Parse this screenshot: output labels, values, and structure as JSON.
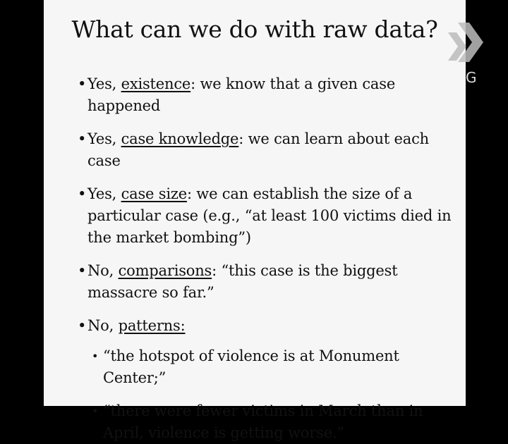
{
  "slide": {
    "title": "What can we do with raw data?",
    "bullets": [
      {
        "marker": "•",
        "prefix": "Yes, ",
        "term": "existence",
        "rest": ": we know that a given case happened"
      },
      {
        "marker": "•",
        "prefix": "Yes, ",
        "term": "case knowledge",
        "rest": ": we can learn about each case"
      },
      {
        "marker": "•",
        "prefix": "Yes, ",
        "term": "case size",
        "rest": ": we can establish the size of a particular case (e.g., “at least 100 victims died in the market bombing”)"
      },
      {
        "marker": "•",
        "prefix": "No, ",
        "term": "comparisons",
        "rest": ": “this case is the biggest massacre so far.”"
      },
      {
        "marker": "•",
        "prefix": "No, ",
        "term": "patterns:",
        "rest": ""
      }
    ],
    "sub_bullets": [
      {
        "marker": "•",
        "text": "“the hotspot of violence is at Monument Center;”"
      },
      {
        "marker": "•",
        "text": "“there were fewer victims in March than in April, violence is getting worse.”"
      }
    ]
  },
  "logo": {
    "icon": "chevron-logo-icon",
    "letter": "G"
  }
}
